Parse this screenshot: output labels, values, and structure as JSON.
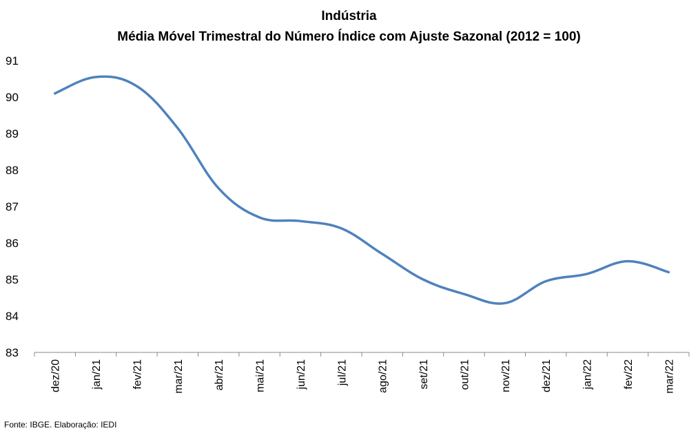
{
  "chart_data": {
    "type": "line",
    "title": "Indústria",
    "subtitle": "Média Móvel Trimestral do Número Índice com Ajuste Sazonal (2012 = 100)",
    "categories": [
      "dez/20",
      "jan/21",
      "fev/21",
      "mar/21",
      "abr/21",
      "mai/21",
      "jun/21",
      "jul/21",
      "ago/21",
      "set/21",
      "out/21",
      "nov/21",
      "dez/21",
      "jan/22",
      "fev/22",
      "mar/22"
    ],
    "series": [
      {
        "values": [
          90.1,
          90.55,
          90.3,
          89.15,
          87.5,
          86.7,
          86.6,
          86.4,
          85.7,
          85.0,
          84.6,
          84.35,
          84.95,
          85.15,
          85.5,
          85.2
        ]
      }
    ],
    "ylim": [
      83,
      91
    ],
    "yticks": [
      83,
      84,
      85,
      86,
      87,
      88,
      89,
      90,
      91
    ],
    "grid": false,
    "line_color": "#4F81BD"
  },
  "source": "Fonte: IBGE. Elaboração: IEDI"
}
